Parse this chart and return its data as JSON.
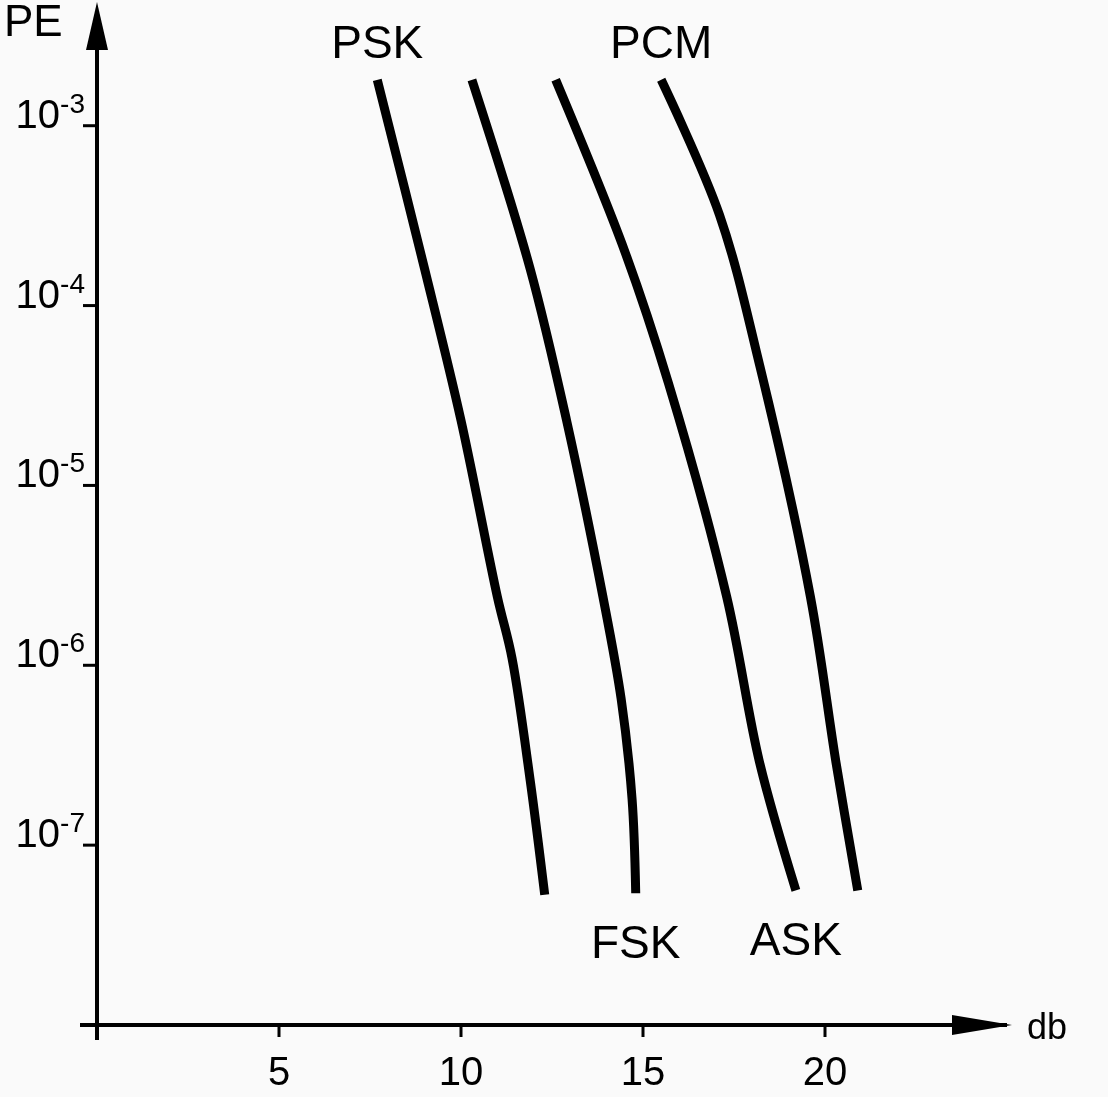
{
  "chart_data": {
    "type": "line",
    "ylabel": "PE",
    "xlabel": "db",
    "log": "y",
    "grid": false,
    "marker": "none",
    "line_style": "solid",
    "xlim": [
      0,
      25
    ],
    "xticks": [
      5,
      10,
      15,
      20
    ],
    "ylim": [
      1e-08,
      0.005
    ],
    "yticks": [
      {
        "value": 0.001,
        "label": "10$^{-3}$"
      },
      {
        "value": 0.0001,
        "label": "10$^{-4}$"
      },
      {
        "value": 1e-05,
        "label": "10$^{-5}$"
      },
      {
        "value": 1e-06,
        "label": "10$^{-6}$"
      },
      {
        "value": 1e-07,
        "label": "10$^{-7}$"
      }
    ],
    "series": [
      {
        "name": "PSK",
        "color": "#000000",
        "x": [
          7.7,
          9.0,
          10.0,
          11.0,
          11.4,
          11.9,
          12.3
        ],
        "values": [
          0.0018,
          0.00016,
          2.3e-05,
          2.4e-06,
          1.1e-06,
          2.3e-07,
          5.3e-08
        ]
      },
      {
        "name": "FSK",
        "color": "#000000",
        "x": [
          10.3,
          11.9,
          12.9,
          13.9,
          14.4,
          14.7,
          14.8
        ],
        "values": [
          0.0018,
          0.00016,
          2.3e-05,
          2.4e-06,
          6.5e-07,
          1.8e-07,
          5.4e-08
        ]
      },
      {
        "name": "ASK",
        "color": "#000000",
        "x": [
          12.6,
          14.5,
          15.7,
          17.3,
          18.2,
          19.2
        ],
        "values": [
          0.0018,
          0.0002,
          3.7e-05,
          2.4e-06,
          2.9e-07,
          5.6e-08
        ]
      },
      {
        "name": "PCM",
        "color": "#000000",
        "x": [
          15.5,
          17.1,
          18.2,
          19.6,
          20.3,
          20.9
        ],
        "values": [
          0.0018,
          0.00032,
          4.7e-05,
          2.4e-06,
          2.9e-07,
          5.6e-08
        ]
      }
    ]
  }
}
